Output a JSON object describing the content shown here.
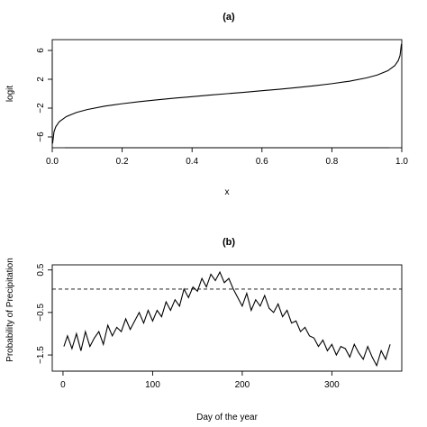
{
  "chart_data": [
    {
      "id": "a",
      "type": "line",
      "title": "(a)",
      "xlabel": "x",
      "ylabel": "logit",
      "xlim": [
        0,
        1
      ],
      "ylim": [
        -7.5,
        7.5
      ],
      "x_ticks": [
        0.0,
        0.2,
        0.4,
        0.6,
        0.8,
        1.0
      ],
      "x_tick_labels": [
        "0.0",
        "0.2",
        "0.4",
        "0.6",
        "0.8",
        "1.0"
      ],
      "y_ticks": [
        -6,
        -2,
        2,
        6
      ],
      "y_tick_labels": [
        "−6",
        "−2",
        "2",
        "6"
      ],
      "x": [
        0.001,
        0.005,
        0.01,
        0.02,
        0.04,
        0.07,
        0.1,
        0.15,
        0.2,
        0.25,
        0.3,
        0.35,
        0.4,
        0.45,
        0.5,
        0.55,
        0.6,
        0.65,
        0.7,
        0.75,
        0.8,
        0.85,
        0.9,
        0.93,
        0.96,
        0.98,
        0.99,
        0.995,
        0.999
      ],
      "y": [
        -6.91,
        -5.29,
        -4.6,
        -3.89,
        -3.18,
        -2.59,
        -2.2,
        -1.73,
        -1.39,
        -1.1,
        -0.85,
        -0.62,
        -0.41,
        -0.2,
        0.0,
        0.2,
        0.41,
        0.62,
        0.85,
        1.1,
        1.39,
        1.73,
        2.2,
        2.59,
        3.18,
        3.89,
        4.6,
        5.29,
        6.91
      ],
      "grid": false
    },
    {
      "id": "b",
      "type": "line",
      "title": "(b)",
      "xlabel": "Day of the year",
      "ylabel": "Probability of Precipitation",
      "xlim": [
        -12,
        378
      ],
      "ylim": [
        -1.88,
        0.62
      ],
      "x_ticks": [
        0,
        100,
        200,
        300
      ],
      "x_tick_labels": [
        "0",
        "100",
        "200",
        "300"
      ],
      "y_ticks": [
        -1.5,
        -0.5,
        0.5
      ],
      "y_tick_labels": [
        "−1.5",
        "−0.5",
        "0.5"
      ],
      "reference_line": {
        "y": 0.05,
        "style": "dashed"
      },
      "x": [
        1,
        5,
        10,
        15,
        20,
        25,
        30,
        35,
        40,
        45,
        50,
        55,
        60,
        65,
        70,
        75,
        80,
        85,
        90,
        95,
        100,
        105,
        110,
        115,
        120,
        125,
        130,
        135,
        140,
        145,
        150,
        155,
        160,
        165,
        170,
        175,
        180,
        185,
        190,
        195,
        200,
        205,
        210,
        215,
        220,
        225,
        230,
        235,
        240,
        245,
        250,
        255,
        260,
        265,
        270,
        275,
        280,
        285,
        290,
        295,
        300,
        305,
        310,
        315,
        320,
        325,
        330,
        335,
        340,
        345,
        350,
        355,
        360,
        365
      ],
      "y": [
        -1.3,
        -1.05,
        -1.35,
        -1.0,
        -1.4,
        -0.95,
        -1.3,
        -1.1,
        -0.95,
        -1.25,
        -0.8,
        -1.05,
        -0.85,
        -0.95,
        -0.65,
        -0.9,
        -0.7,
        -0.5,
        -0.75,
        -0.45,
        -0.7,
        -0.45,
        -0.6,
        -0.25,
        -0.45,
        -0.2,
        -0.35,
        0.05,
        -0.15,
        0.1,
        0.0,
        0.3,
        0.1,
        0.4,
        0.25,
        0.45,
        0.2,
        0.3,
        0.05,
        -0.15,
        -0.35,
        -0.05,
        -0.45,
        -0.2,
        -0.35,
        -0.1,
        -0.4,
        -0.5,
        -0.3,
        -0.6,
        -0.45,
        -0.75,
        -0.7,
        -0.95,
        -0.85,
        -1.05,
        -1.1,
        -1.3,
        -1.15,
        -1.4,
        -1.25,
        -1.5,
        -1.3,
        -1.35,
        -1.55,
        -1.25,
        -1.45,
        -1.6,
        -1.3,
        -1.55,
        -1.75,
        -1.4,
        -1.6,
        -1.25
      ],
      "grid": false
    }
  ]
}
